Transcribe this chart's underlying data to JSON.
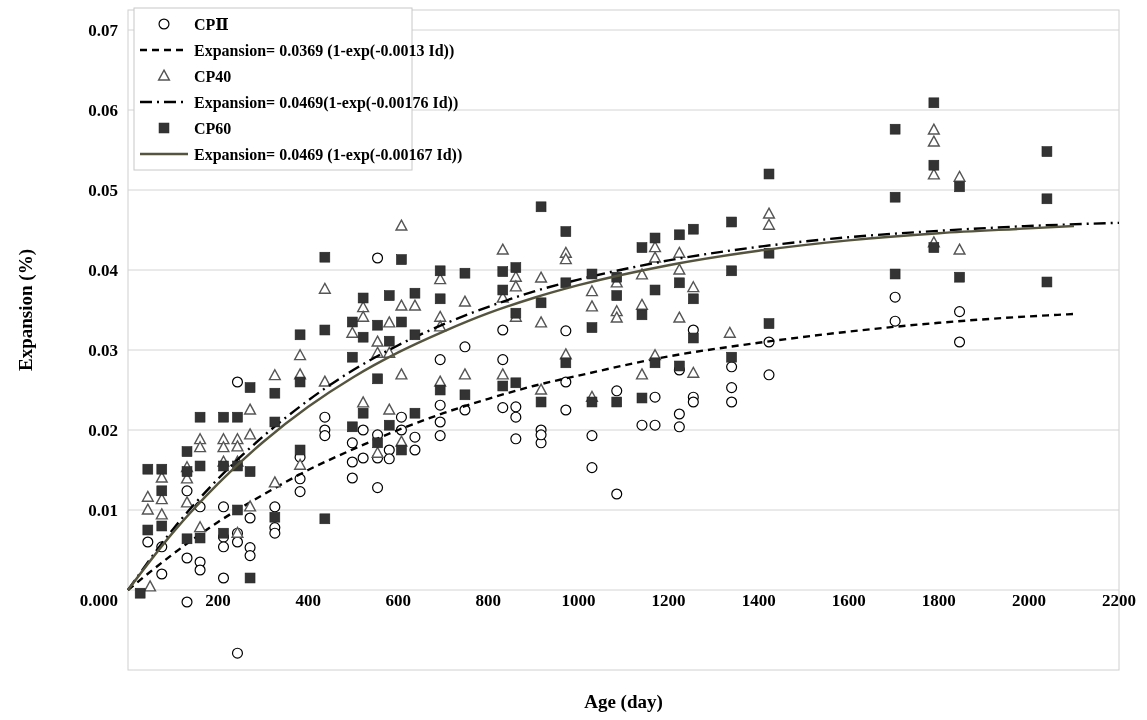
{
  "chart_data": {
    "type": "scatter",
    "xlabel": "Age (day)",
    "ylabel": "Expansion (%)",
    "xlim": [
      0,
      2200
    ],
    "ylim": [
      -0.01,
      0.07
    ],
    "xticks": [
      200,
      400,
      600,
      800,
      1000,
      1200,
      1400,
      1600,
      1800,
      2000,
      2200
    ],
    "yticks": [
      {
        "value": 0,
        "label": "0.000"
      },
      0.01,
      0.02,
      0.03,
      0.04,
      0.05,
      0.06,
      0.07
    ],
    "grid": "y",
    "legend": "top left",
    "series": [
      {
        "name": "CPⅡ",
        "marker": "circle",
        "color": "#000000",
        "x": [
          44,
          75,
          75,
          131,
          131,
          131,
          160,
          160,
          160,
          212,
          212,
          212,
          212,
          243,
          243,
          243,
          243,
          271,
          271,
          271,
          326,
          326,
          326,
          382,
          382,
          382,
          437,
          437,
          437,
          498,
          498,
          498,
          522,
          522,
          554,
          554,
          554,
          554,
          580,
          580,
          607,
          607,
          637,
          637,
          693,
          693,
          693,
          693,
          748,
          748,
          832,
          832,
          832,
          861,
          861,
          861,
          917,
          917,
          917,
          972,
          972,
          972,
          1030,
          1030,
          1085,
          1085,
          1141,
          1170,
          1170,
          1224,
          1224,
          1224,
          1255,
          1255,
          1255,
          1340,
          1340,
          1340,
          1423,
          1423,
          1703,
          1703,
          1846,
          1846
        ],
        "values": [
          0.006,
          0.0054,
          0.002,
          0.0124,
          0.004,
          -0.0015,
          0.0104,
          0.0035,
          0.0025,
          0.0104,
          0.0066,
          0.0054,
          0.0015,
          0.0071,
          0.006,
          -0.0079,
          0.026,
          0.009,
          0.0053,
          0.0043,
          0.0104,
          0.0078,
          0.0071,
          0.0166,
          0.0139,
          0.0123,
          0.0216,
          0.02,
          0.0193,
          0.0184,
          0.016,
          0.014,
          0.02,
          0.0165,
          0.0194,
          0.0165,
          0.0128,
          0.0415,
          0.0175,
          0.0164,
          0.0216,
          0.02,
          0.0191,
          0.0175,
          0.0231,
          0.021,
          0.0193,
          0.0288,
          0.0225,
          0.0304,
          0.0325,
          0.0288,
          0.0228,
          0.0229,
          0.0216,
          0.0189,
          0.02,
          0.0184,
          0.0194,
          0.0324,
          0.026,
          0.0225,
          0.0193,
          0.0153,
          0.0249,
          0.012,
          0.0206,
          0.0241,
          0.0206,
          0.0275,
          0.022,
          0.0204,
          0.0325,
          0.0241,
          0.0235,
          0.0279,
          0.0253,
          0.0235,
          0.031,
          0.0269,
          0.0366,
          0.0336,
          0.0348,
          0.031
        ]
      },
      {
        "name": "Expansion= 0.0369 (1-exp(-0.0013 Id))",
        "type": "line",
        "line_style": "dashed",
        "color": "#000000",
        "x": [
          0,
          100,
          200,
          300,
          400,
          500,
          600,
          700,
          800,
          900,
          1000,
          1200,
          1400,
          1600,
          1800,
          2000,
          2100
        ],
        "values": [
          0,
          0.0045,
          0.0085,
          0.0119,
          0.015,
          0.0176,
          0.02,
          0.0221,
          0.0239,
          0.0255,
          0.0268,
          0.0292,
          0.0309,
          0.0323,
          0.0334,
          0.0342,
          0.0345
        ]
      },
      {
        "name": "CP40",
        "marker": "triangle",
        "color": "#555555",
        "x": [
          44,
          44,
          49,
          75,
          75,
          75,
          131,
          131,
          131,
          160,
          160,
          160,
          212,
          212,
          212,
          243,
          243,
          243,
          243,
          271,
          271,
          271,
          326,
          326,
          382,
          382,
          382,
          437,
          437,
          498,
          522,
          522,
          522,
          554,
          554,
          554,
          580,
          580,
          580,
          607,
          607,
          607,
          607,
          637,
          693,
          693,
          693,
          693,
          748,
          748,
          832,
          832,
          832,
          861,
          861,
          861,
          917,
          917,
          917,
          972,
          972,
          972,
          1030,
          1030,
          1030,
          1085,
          1085,
          1085,
          1141,
          1141,
          1141,
          1170,
          1170,
          1170,
          1224,
          1224,
          1224,
          1255,
          1255,
          1336,
          1423,
          1423,
          1789,
          1789,
          1789,
          1789,
          1846,
          1846
        ],
        "values": [
          0.0116,
          0.01,
          0.0004,
          0.014,
          0.0113,
          0.0094,
          0.0153,
          0.0139,
          0.0109,
          0.0188,
          0.0178,
          0.0078,
          0.0188,
          0.0178,
          0.016,
          0.0188,
          0.0179,
          0.016,
          0.0071,
          0.0225,
          0.0194,
          0.0104,
          0.0134,
          0.0268,
          0.0156,
          0.0293,
          0.0269,
          0.0376,
          0.026,
          0.0321,
          0.0234,
          0.0353,
          0.0341,
          0.0171,
          0.031,
          0.0296,
          0.0225,
          0.0334,
          0.0296,
          0.0185,
          0.0455,
          0.0269,
          0.0355,
          0.0355,
          0.0388,
          0.0341,
          0.0329,
          0.026,
          0.036,
          0.0269,
          0.0425,
          0.0365,
          0.0269,
          0.0391,
          0.0379,
          0.0341,
          0.039,
          0.0334,
          0.025,
          0.0421,
          0.0413,
          0.0294,
          0.0373,
          0.0354,
          0.0241,
          0.0384,
          0.0348,
          0.034,
          0.0394,
          0.0356,
          0.0269,
          0.0428,
          0.0415,
          0.0293,
          0.0421,
          0.04,
          0.034,
          0.0378,
          0.0271,
          0.0321,
          0.047,
          0.0456,
          0.0575,
          0.056,
          0.0519,
          0.0434,
          0.0516,
          0.0425
        ]
      },
      {
        "name": "Expansion= 0.0469(1-exp(-0.00176 Id))",
        "type": "line",
        "line_style": "dashdot",
        "color": "#000000",
        "x": [
          0,
          100,
          200,
          300,
          400,
          500,
          600,
          700,
          800,
          900,
          1000,
          1200,
          1400,
          1600,
          1800,
          2000,
          2200
        ],
        "values": [
          0,
          0.0076,
          0.0139,
          0.0192,
          0.0237,
          0.0275,
          0.0306,
          0.0332,
          0.0354,
          0.0373,
          0.0388,
          0.0412,
          0.0429,
          0.0441,
          0.0449,
          0.0455,
          0.0459
        ]
      },
      {
        "name": "CP60",
        "marker": "square",
        "color": "#333333",
        "x": [
          27,
          44,
          44,
          75,
          75,
          75,
          131,
          131,
          131,
          160,
          160,
          160,
          212,
          212,
          212,
          243,
          243,
          243,
          271,
          271,
          271,
          326,
          326,
          326,
          382,
          382,
          382,
          437,
          437,
          437,
          498,
          498,
          498,
          522,
          522,
          522,
          554,
          554,
          554,
          580,
          580,
          580,
          607,
          607,
          607,
          637,
          637,
          637,
          693,
          693,
          693,
          748,
          748,
          832,
          832,
          832,
          861,
          861,
          861,
          917,
          917,
          917,
          972,
          972,
          972,
          1030,
          1030,
          1030,
          1085,
          1085,
          1085,
          1141,
          1141,
          1141,
          1170,
          1170,
          1170,
          1224,
          1224,
          1224,
          1255,
          1255,
          1255,
          1340,
          1340,
          1340,
          1423,
          1423,
          1423,
          1703,
          1703,
          1703,
          1789,
          1789,
          1789,
          1846,
          1846,
          2040,
          2040,
          2040
        ],
        "values": [
          -0.0004,
          0.0151,
          0.0075,
          0.0151,
          0.0124,
          0.008,
          0.0173,
          0.0148,
          0.0064,
          0.0155,
          0.0216,
          0.0065,
          0.0216,
          0.0155,
          0.0071,
          0.0216,
          0.0155,
          0.01,
          0.0148,
          0.0015,
          0.0253,
          0.021,
          0.0091,
          0.0246,
          0.0175,
          0.0319,
          0.026,
          0.0089,
          0.0416,
          0.0325,
          0.0204,
          0.0335,
          0.0291,
          0.0221,
          0.0365,
          0.0316,
          0.0184,
          0.0331,
          0.0264,
          0.0206,
          0.0368,
          0.0311,
          0.0175,
          0.0413,
          0.0335,
          0.0221,
          0.0371,
          0.0319,
          0.0399,
          0.0364,
          0.025,
          0.0396,
          0.0244,
          0.0398,
          0.0375,
          0.0255,
          0.0403,
          0.0346,
          0.0259,
          0.0479,
          0.0359,
          0.0235,
          0.0448,
          0.0384,
          0.0284,
          0.0395,
          0.0328,
          0.0235,
          0.0391,
          0.0368,
          0.0235,
          0.0428,
          0.0344,
          0.024,
          0.044,
          0.0375,
          0.0284,
          0.0444,
          0.0384,
          0.028,
          0.0451,
          0.0364,
          0.0315,
          0.046,
          0.0399,
          0.0291,
          0.052,
          0.0421,
          0.0333,
          0.0576,
          0.0491,
          0.0395,
          0.0609,
          0.0531,
          0.0428,
          0.0504,
          0.0391,
          0.0548,
          0.0489,
          0.0385
        ]
      },
      {
        "name": "Expansion= 0.0469 (1-exp(-0.00167 Id))",
        "type": "line",
        "line_style": "solid",
        "color": "#55553f",
        "x": [
          0,
          100,
          200,
          300,
          400,
          500,
          600,
          700,
          800,
          900,
          1000,
          1200,
          1400,
          1600,
          1800,
          2000,
          2100
        ],
        "values": [
          0,
          0.0072,
          0.0133,
          0.0185,
          0.0229,
          0.0266,
          0.0297,
          0.0323,
          0.0346,
          0.0365,
          0.0381,
          0.0406,
          0.0424,
          0.0437,
          0.0446,
          0.0452,
          0.0455
        ]
      }
    ]
  }
}
